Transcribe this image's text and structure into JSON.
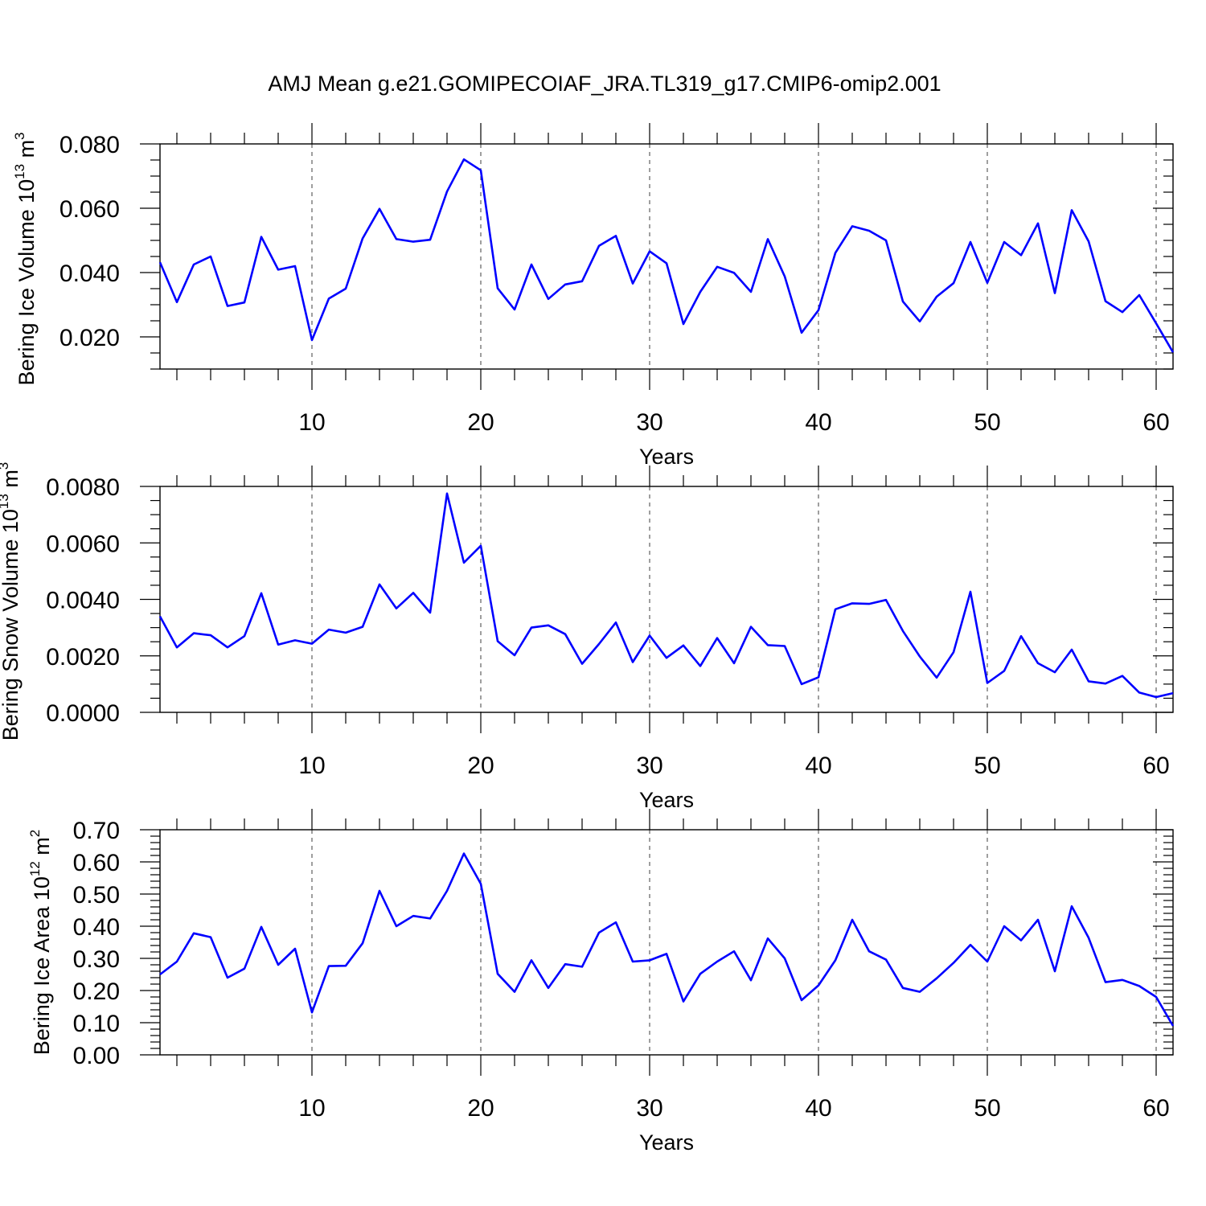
{
  "title": "AMJ Mean g.e21.GOMIPECOIAF_JRA.TL319_g17.CMIP6-omip2.001",
  "colors": {
    "series": "#0000ff",
    "axes": "#000000",
    "background": "#ffffff"
  },
  "chart_data": [
    {
      "type": "line",
      "ylabel": {
        "text": "Bering Ice Volume 10",
        "exp": "13",
        "unit": " m",
        "unit_exp": "3"
      },
      "xlabel": "Years",
      "xlim": [
        1,
        61
      ],
      "ylim": [
        0.01,
        0.08
      ],
      "yticks": [
        "0.020",
        "0.040",
        "0.060",
        "0.080"
      ],
      "ytick_values": [
        0.02,
        0.04,
        0.06,
        0.08
      ],
      "xticks": [
        10,
        20,
        30,
        40,
        50,
        60
      ],
      "grid": "vertical dashed",
      "x_start": 1,
      "values": [
        0.0432,
        0.0308,
        0.0425,
        0.045,
        0.0296,
        0.0307,
        0.0511,
        0.0409,
        0.042,
        0.019,
        0.0319,
        0.035,
        0.0506,
        0.0598,
        0.0504,
        0.0496,
        0.0502,
        0.0652,
        0.0752,
        0.0718,
        0.0351,
        0.0285,
        0.0425,
        0.0318,
        0.0363,
        0.0373,
        0.0483,
        0.0514,
        0.0366,
        0.0466,
        0.0429,
        0.024,
        0.034,
        0.0418,
        0.0399,
        0.034,
        0.0504,
        0.0388,
        0.0213,
        0.0283,
        0.0461,
        0.0544,
        0.053,
        0.05,
        0.031,
        0.0248,
        0.0325,
        0.0367,
        0.0495,
        0.0368,
        0.0495,
        0.0454,
        0.0553,
        0.0336,
        0.0594,
        0.0497,
        0.0311,
        0.0277,
        0.033,
        0.0242,
        0.0152
      ]
    },
    {
      "type": "line",
      "ylabel": {
        "text": "Bering Snow Volume 10",
        "exp": "13",
        "unit": " m",
        "unit_exp": "3"
      },
      "xlabel": "Years",
      "xlim": [
        1,
        61
      ],
      "ylim": [
        0.0,
        0.008
      ],
      "yticks": [
        "0.0000",
        "0.0020",
        "0.0040",
        "0.0060",
        "0.0080"
      ],
      "ytick_values": [
        0.0,
        0.002,
        0.004,
        0.006,
        0.008
      ],
      "xticks": [
        10,
        20,
        30,
        40,
        50,
        60
      ],
      "grid": "vertical dashed",
      "x_start": 1,
      "values": [
        0.0034,
        0.0023,
        0.0028,
        0.00273,
        0.0023,
        0.0027,
        0.00422,
        0.0024,
        0.00255,
        0.00243,
        0.00293,
        0.00282,
        0.00303,
        0.00453,
        0.00368,
        0.00423,
        0.00353,
        0.00775,
        0.0053,
        0.0059,
        0.00252,
        0.00202,
        0.003,
        0.00308,
        0.00277,
        0.00172,
        0.00242,
        0.00318,
        0.00178,
        0.00272,
        0.00193,
        0.00237,
        0.00164,
        0.00263,
        0.00174,
        0.00303,
        0.00238,
        0.00235,
        0.001,
        0.00124,
        0.00365,
        0.00386,
        0.00384,
        0.00398,
        0.00288,
        0.00198,
        0.00123,
        0.00213,
        0.00427,
        0.00104,
        0.00147,
        0.0027,
        0.00174,
        0.00142,
        0.00222,
        0.0011,
        0.00102,
        0.00129,
        0.0007,
        0.00054,
        0.00068
      ]
    },
    {
      "type": "line",
      "ylabel": {
        "text": "Bering Ice Area 10",
        "exp": "12",
        "unit": " m",
        "unit_exp": "2"
      },
      "xlabel": "Years",
      "xlim": [
        1,
        61
      ],
      "ylim": [
        0.0,
        0.7
      ],
      "yticks": [
        "0.00",
        "0.10",
        "0.20",
        "0.30",
        "0.40",
        "0.50",
        "0.60",
        "0.70"
      ],
      "ytick_values": [
        0.0,
        0.1,
        0.2,
        0.3,
        0.4,
        0.5,
        0.6,
        0.7
      ],
      "xticks": [
        10,
        20,
        30,
        40,
        50,
        60
      ],
      "grid": "vertical dashed",
      "x_start": 1,
      "values": [
        0.25,
        0.29,
        0.378,
        0.366,
        0.24,
        0.268,
        0.398,
        0.28,
        0.33,
        0.132,
        0.276,
        0.277,
        0.347,
        0.51,
        0.4,
        0.432,
        0.424,
        0.51,
        0.626,
        0.532,
        0.252,
        0.196,
        0.294,
        0.208,
        0.282,
        0.274,
        0.38,
        0.412,
        0.29,
        0.294,
        0.314,
        0.166,
        0.252,
        0.29,
        0.322,
        0.232,
        0.362,
        0.3,
        0.17,
        0.216,
        0.294,
        0.42,
        0.322,
        0.296,
        0.208,
        0.196,
        0.238,
        0.286,
        0.342,
        0.29,
        0.4,
        0.356,
        0.42,
        0.26,
        0.462,
        0.364,
        0.226,
        0.233,
        0.214,
        0.18,
        0.09
      ]
    }
  ]
}
